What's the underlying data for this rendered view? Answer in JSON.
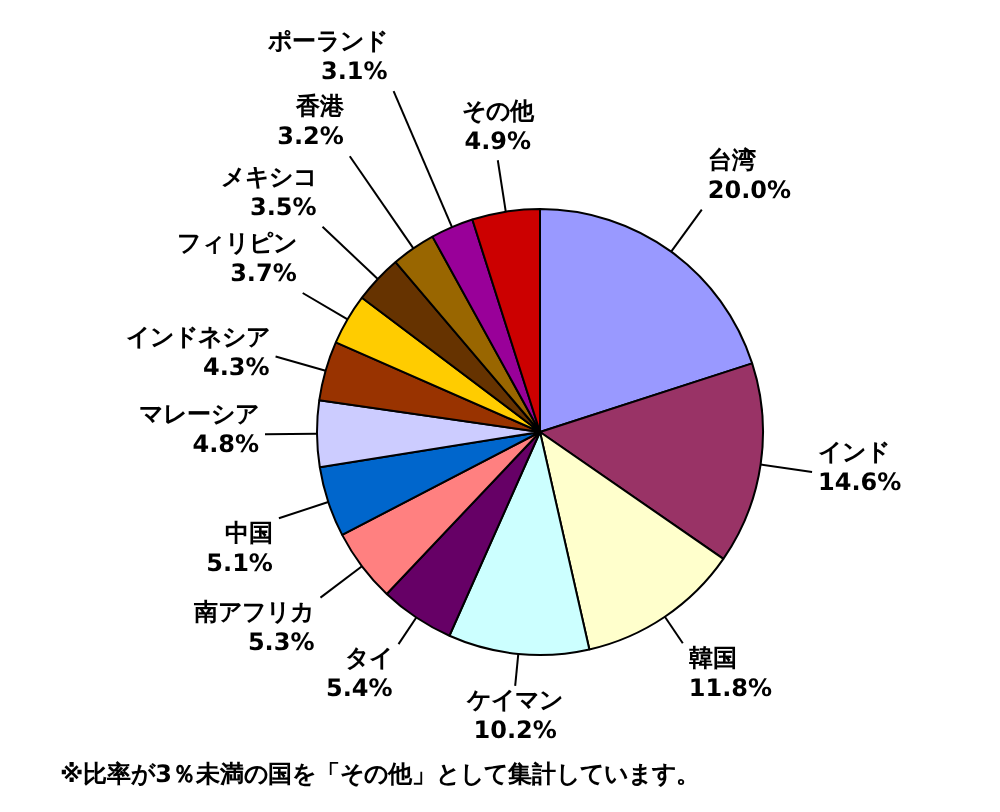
{
  "chart_data": {
    "type": "pie",
    "categories": [
      "台湾",
      "インド",
      "韓国",
      "ケイマン",
      "タイ",
      "南アフリカ",
      "中国",
      "マレーシア",
      "インドネシア",
      "フィリピン",
      "メキシコ",
      "香港",
      "ポーランド",
      "その他"
    ],
    "values": [
      20.0,
      14.6,
      11.8,
      10.2,
      5.4,
      5.3,
      5.1,
      4.8,
      4.3,
      3.7,
      3.5,
      3.2,
      3.1,
      4.9
    ],
    "value_labels": [
      "20.0%",
      "14.6%",
      "11.8%",
      "10.2%",
      "5.4%",
      "5.3%",
      "5.1%",
      "4.8%",
      "4.3%",
      "3.7%",
      "3.5%",
      "3.2%",
      "3.1%",
      "4.9%"
    ],
    "colors": [
      "#9999ff",
      "#993366",
      "#ffffcc",
      "#ccffff",
      "#660066",
      "#ff8080",
      "#0066cc",
      "#ccccff",
      "#993300",
      "#ffcc00",
      "#663300",
      "#996600",
      "#990099",
      "#cc0000"
    ],
    "legend": false,
    "annotations": [
      "※比率が3％未満の国を「その他」として集計しています。"
    ]
  }
}
